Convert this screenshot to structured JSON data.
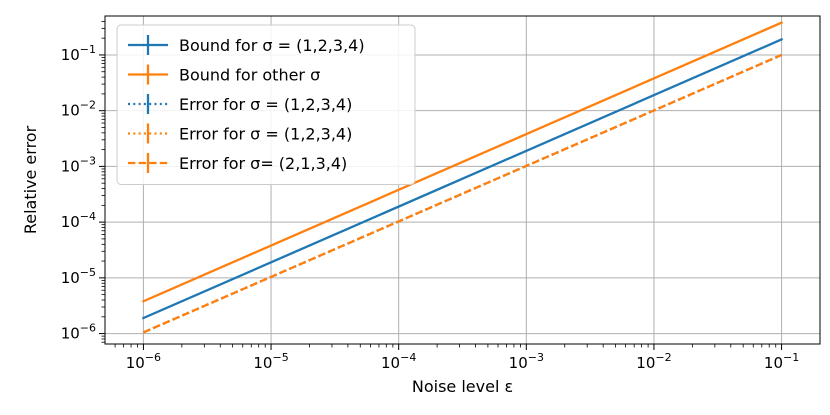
{
  "chart_data": {
    "type": "line",
    "xlabel": "Noise level ε",
    "ylabel": "Relative error",
    "xscale": "log",
    "yscale": "log",
    "xlim": [
      5e-07,
      0.2
    ],
    "ylim": [
      6.5e-07,
      0.5
    ],
    "grid": true,
    "legend_position": "top-left",
    "x_ticks": [
      {
        "value": 1e-06,
        "base": "10",
        "exp": "−6"
      },
      {
        "value": 1e-05,
        "base": "10",
        "exp": "−5"
      },
      {
        "value": 0.0001,
        "base": "10",
        "exp": "−4"
      },
      {
        "value": 0.001,
        "base": "10",
        "exp": "−3"
      },
      {
        "value": 0.01,
        "base": "10",
        "exp": "−2"
      },
      {
        "value": 0.1,
        "base": "10",
        "exp": "−1"
      }
    ],
    "y_ticks": [
      {
        "value": 1e-06,
        "base": "10",
        "exp": "−6"
      },
      {
        "value": 1e-05,
        "base": "10",
        "exp": "−5"
      },
      {
        "value": 0.0001,
        "base": "10",
        "exp": "−4"
      },
      {
        "value": 0.001,
        "base": "10",
        "exp": "−3"
      },
      {
        "value": 0.01,
        "base": "10",
        "exp": "−2"
      },
      {
        "value": 0.1,
        "base": "10",
        "exp": "−1"
      }
    ],
    "series": [
      {
        "name": "Bound for σ = (1,2,3,4)",
        "color": "#1f77b4",
        "style": "solid",
        "x": [
          1e-06,
          0.1
        ],
        "y": [
          1.9e-06,
          0.19
        ]
      },
      {
        "name": "Bound for other σ",
        "color": "#ff7f0e",
        "style": "solid",
        "x": [
          1e-06,
          0.1
        ],
        "y": [
          3.8e-06,
          0.38
        ]
      },
      {
        "name": "Error for σ = (1,2,3,4)",
        "color": "#1f77b4",
        "style": "dotted",
        "x": [
          1e-06,
          0.1
        ],
        "y": [
          1.05e-06,
          0.1
        ]
      },
      {
        "name": "Error for σ = (1,2,3,4)",
        "color": "#ff7f0e",
        "style": "dotted",
        "x": [
          1e-06,
          0.1
        ],
        "y": [
          1.05e-06,
          0.1
        ]
      },
      {
        "name": "Error for σ= (2,1,3,4)",
        "color": "#ff7f0e",
        "style": "dashed",
        "x": [
          1e-06,
          0.1
        ],
        "y": [
          1.05e-06,
          0.1
        ]
      }
    ]
  }
}
